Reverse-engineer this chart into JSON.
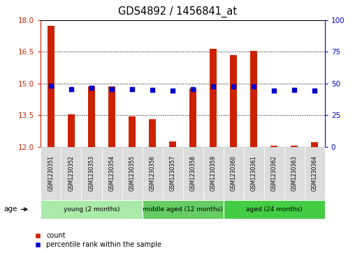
{
  "title": "GDS4892 / 1456841_at",
  "samples": [
    "GSM1230351",
    "GSM1230352",
    "GSM1230353",
    "GSM1230354",
    "GSM1230355",
    "GSM1230356",
    "GSM1230357",
    "GSM1230358",
    "GSM1230359",
    "GSM1230360",
    "GSM1230361",
    "GSM1230362",
    "GSM1230363",
    "GSM1230364"
  ],
  "count_values": [
    17.75,
    13.55,
    14.85,
    14.85,
    13.45,
    13.3,
    12.25,
    14.75,
    16.65,
    16.35,
    16.55,
    12.05,
    12.05,
    12.2
  ],
  "percentile_values": [
    14.88,
    14.72,
    14.78,
    14.73,
    14.72,
    14.69,
    14.65,
    14.72,
    14.85,
    14.85,
    14.85,
    14.67,
    14.68,
    14.67
  ],
  "ymin": 12,
  "ymax": 18,
  "yticks": [
    12,
    13.5,
    15,
    16.5,
    18
  ],
  "y2min": 0,
  "y2max": 100,
  "y2ticks": [
    0,
    25,
    50,
    75,
    100
  ],
  "groups": [
    {
      "label": "young (2 months)",
      "start": 0,
      "end": 5,
      "color": "#AAEAAA"
    },
    {
      "label": "middle aged (12 months)",
      "start": 5,
      "end": 9,
      "color": "#66CC66"
    },
    {
      "label": "aged (24 months)",
      "start": 9,
      "end": 14,
      "color": "#44CC44"
    }
  ],
  "bar_color": "#CC2200",
  "dot_color": "#0000CC",
  "bar_width": 0.35,
  "count_label": "count",
  "percentile_label": "percentile rank within the sample",
  "age_label": "age",
  "background_color": "#FFFFFF",
  "tick_box_color": "#DCDCDC",
  "axis_color_left": "#CC2200",
  "axis_color_right": "#0000CC"
}
